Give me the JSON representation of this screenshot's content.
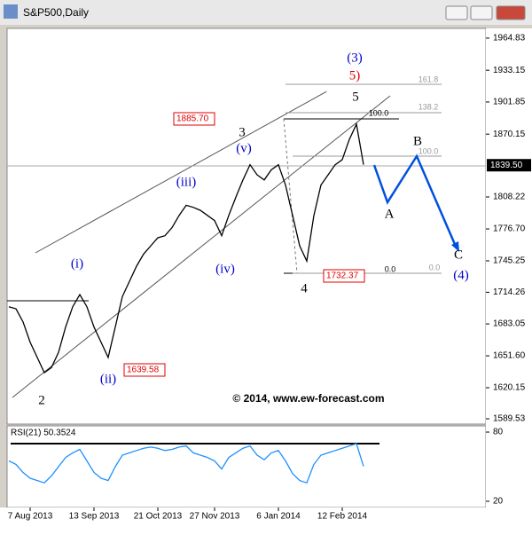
{
  "window_title": "S&P500,Daily",
  "chart_data": [
    {
      "type": "line",
      "color": "#000000",
      "categories": [
        null,
        null,
        null,
        "7 Aug 2013",
        null,
        null,
        null,
        null,
        null,
        null,
        null,
        null,
        "13 Sep 2013",
        null,
        null,
        null,
        null,
        null,
        null,
        null,
        null,
        "21 Oct 2013",
        null,
        null,
        null,
        null,
        null,
        null,
        null,
        "27 Nov 2013",
        null,
        null,
        null,
        null,
        null,
        null,
        null,
        null,
        "6 Jan 2014",
        null,
        null,
        null,
        null,
        null,
        null,
        null,
        null,
        "12 Feb 2014",
        null,
        null,
        null
      ],
      "values": [
        1700,
        1698,
        1685,
        1665,
        1650,
        1635,
        1640,
        1655,
        1680,
        1700,
        1712,
        1700,
        1680,
        1665,
        1650,
        1680,
        1710,
        1725,
        1740,
        1752,
        1760,
        1768,
        1770,
        1778,
        1790,
        1800,
        1798,
        1795,
        1790,
        1785,
        1770,
        1790,
        1808,
        1825,
        1840,
        1830,
        1825,
        1835,
        1840,
        1820,
        1790,
        1760,
        1745,
        1790,
        1820,
        1830,
        1840,
        1845,
        1865,
        1880,
        1840
      ],
      "ylim": [
        1584.3,
        1974.4
      ],
      "yticks": [
        1964.83,
        1933.15,
        1901.85,
        1870.15,
        1808.22,
        {
          "value": 1776.7,
          "label": "1776.70"
        },
        1745.25,
        1714.26,
        1683.05,
        {
          "value": 1651.6,
          "label": "1651.60"
        },
        1620.15,
        1589.53
      ],
      "last_price": {
        "value": 1839.5,
        "label": "1839.50"
      },
      "annotations": [
        {
          "text": "(i)",
          "color": "#0000cc"
        },
        {
          "text": "(ii)",
          "color": "#0000cc"
        },
        {
          "text": "(iii)",
          "color": "#0000cc"
        },
        {
          "text": "(iv)",
          "color": "#0000cc"
        },
        {
          "text": "(v)",
          "color": "#0000cc"
        },
        {
          "text": "2",
          "color": "#000000"
        },
        {
          "text": "3",
          "color": "#000000"
        },
        {
          "text": "4",
          "color": "#000000"
        },
        {
          "text": "5",
          "color": "#000000"
        },
        {
          "text": "(3)",
          "color": "#0000cc"
        },
        {
          "text": "5)",
          "color": "#e00000"
        },
        {
          "text": "A",
          "color": "#000000"
        },
        {
          "text": "B",
          "color": "#000000"
        },
        {
          "text": "C",
          "color": "#000000"
        },
        {
          "text": "(4)",
          "color": "#0000cc"
        }
      ],
      "price_labels": [
        "1885.70",
        "1639.58",
        "1732.37"
      ],
      "fib_labels": [
        "161.8",
        "138.2",
        "100.0",
        "100.0",
        "0.0",
        "0.0"
      ],
      "copyright": "© 2014, www.ew-forecast.com"
    },
    {
      "type": "line",
      "title": "RSI(21) 50.3524",
      "color": "#1e90ff",
      "values": [
        55,
        52,
        45,
        40,
        38,
        36,
        42,
        50,
        58,
        62,
        65,
        55,
        45,
        40,
        38,
        50,
        60,
        62,
        64,
        66,
        67,
        66,
        64,
        65,
        67,
        68,
        62,
        60,
        58,
        55,
        48,
        58,
        62,
        66,
        68,
        60,
        56,
        62,
        64,
        55,
        44,
        38,
        36,
        52,
        60,
        62,
        64,
        66,
        68,
        70,
        50.35
      ],
      "ylim": [
        14.6,
        85.4
      ],
      "yticks": [
        80,
        20
      ],
      "level": 70
    }
  ]
}
